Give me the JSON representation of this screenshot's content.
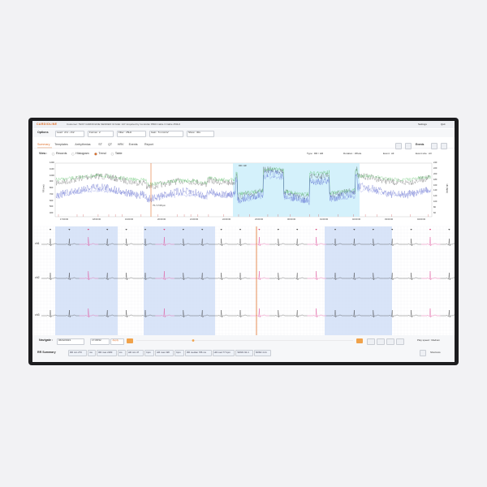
{
  "header": {
    "logo": "CARDIOLINE",
    "patient_info": "Customer: TEST CARDIOLINE   SENDER: M   AGE: 14Y   Acquired by Controller 8500   Cable 3 Cable   250Hz",
    "settings": "Settings",
    "quit": "Quit"
  },
  "options": {
    "label": "Options",
    "dropdowns": [
      "Lead : ch1 - ch2",
      "Format : 2",
      "Filter : 25Hz",
      "Gain : 5 mm/mV",
      "Show : 30s"
    ]
  },
  "tabs": {
    "items": [
      "Summary",
      "Templates",
      "Arrhythmias",
      "ST",
      "QT",
      "HRV",
      "Events",
      "Report"
    ],
    "events": "Events"
  },
  "view": {
    "label": "View :",
    "options": [
      "Records",
      "Histogram",
      "Trend",
      "Table"
    ],
    "filters": [
      "Type : RR / HR",
      "Duration : Whole",
      "Event : All",
      "Event size : All"
    ]
  },
  "trend": {
    "left_axis": "RR (ms)",
    "right_axis": "HR (bpm)",
    "left_ticks": [
      "1200",
      "1100",
      "1000",
      "900",
      "800",
      "700",
      "600",
      "500",
      "400"
    ],
    "right_ticks": [
      "240",
      "220",
      "200",
      "180",
      "160",
      "140",
      "120",
      "100",
      "80",
      "60"
    ],
    "time_labels": [
      "17:00:00",
      "18:00:00",
      "19:00:00",
      "20:00:00",
      "21:00:00",
      "22:00:00",
      "23:00:00",
      "00:00:00",
      "01:00:00",
      "02:00:00",
      "03:00:00",
      "04:00:00"
    ],
    "cursor_label": "75 / 17:08 pm",
    "selection_label": "RR / HR"
  },
  "ecg": {
    "channels": [
      "ch1",
      "ch2",
      "ch3"
    ]
  },
  "navigate": {
    "label": "Navigate :",
    "date": "06/02/2023",
    "time": "17:08:52",
    "apply": "Apply",
    "play_speed": "Play speed : Medium"
  },
  "rr_summary": {
    "label": "RR Summary",
    "chips": [
      "RR min 270",
      "ms",
      "RR max 2180",
      "ms",
      "HR min 47",
      "bpm",
      "HR max 198",
      "bpm",
      "RR median 786 ms",
      "HR med 77 bpm",
      "SDNN 92.4",
      "SDSD 4.21"
    ],
    "shortcuts": "Shortcuts"
  }
}
